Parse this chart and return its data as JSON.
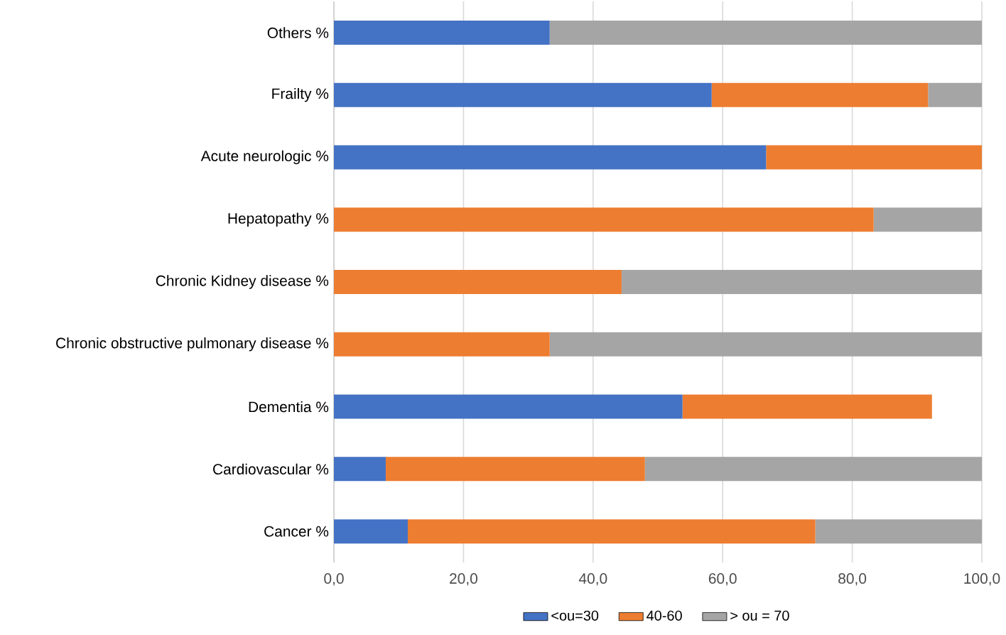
{
  "chart_data": {
    "type": "bar",
    "orientation": "horizontal",
    "stacked": true,
    "categories": [
      "Others %",
      "Frailty %",
      "Acute neurologic %",
      "Hepatopathy %",
      "Chronic Kidney disease %",
      "Chronic obstructive pulmonary disease  %",
      "Dementia %",
      "Cardiovascular %",
      "Cancer  %"
    ],
    "series": [
      {
        "name": "<ou=30",
        "color": "#4472c4",
        "values": [
          33.3,
          58.3,
          66.7,
          0,
          0,
          0,
          53.8,
          8.0,
          11.4
        ]
      },
      {
        "name": "40-60",
        "color": "#ed7d31",
        "values": [
          0,
          33.4,
          33.3,
          83.3,
          44.4,
          33.3,
          38.5,
          40.0,
          62.9
        ]
      },
      {
        "name": "> ou = 70",
        "color": "#a5a5a5",
        "values": [
          66.7,
          8.3,
          0,
          16.7,
          55.6,
          66.7,
          0,
          52.0,
          25.7
        ]
      }
    ],
    "xlim": [
      0,
      100
    ],
    "xticks": [
      {
        "value": 0,
        "label": "0,0"
      },
      {
        "value": 20,
        "label": "20,0"
      },
      {
        "value": 40,
        "label": "40,0"
      },
      {
        "value": 60,
        "label": "60,0"
      },
      {
        "value": 80,
        "label": "80,0"
      },
      {
        "value": 100,
        "label": "100,0"
      }
    ],
    "grid": "x",
    "legend": "bottom"
  }
}
